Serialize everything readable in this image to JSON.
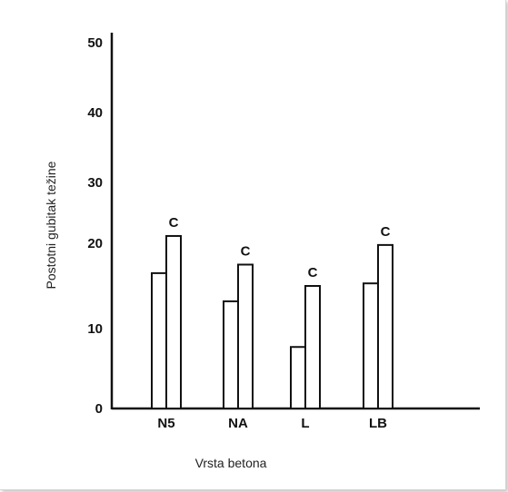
{
  "chart_data": {
    "type": "bar",
    "title": "",
    "xlabel": "Vrsta betona",
    "ylabel": "Postotni gubitak težine",
    "categories": [
      "N5",
      "NA",
      "L",
      "LB"
    ],
    "series": [
      {
        "values": [
          16.5,
          13.2,
          7.7,
          15.3
        ],
        "annotation": ""
      },
      {
        "values": [
          21.2,
          17.5,
          15.0,
          19.8
        ],
        "annotation": "C"
      }
    ],
    "yticks": [
      {
        "value": 0,
        "label": "0"
      },
      {
        "value": 10,
        "label": "10"
      },
      {
        "value": 20,
        "label": "20"
      },
      {
        "value": 30,
        "label": "30"
      },
      {
        "value": 40,
        "label": "40"
      },
      {
        "value": 50,
        "label": "50"
      }
    ],
    "grid": false,
    "legend": "none",
    "colors": {
      "bar_fill": "#ffffff",
      "bar_stroke": "#111111",
      "axis": "#111111"
    }
  }
}
